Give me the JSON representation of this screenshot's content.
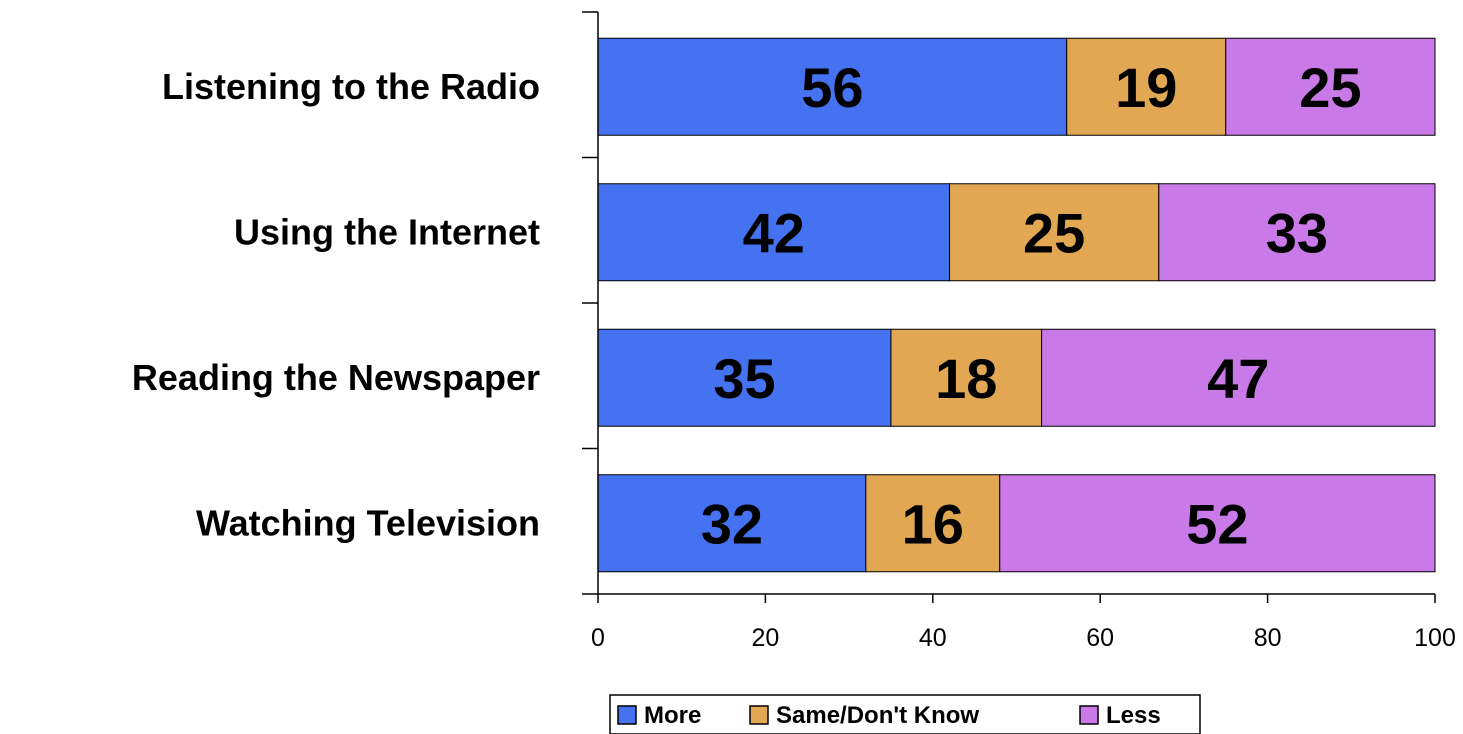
{
  "chart_data": {
    "type": "bar",
    "orientation": "horizontal",
    "stacked": true,
    "categories": [
      "Listening to the Radio",
      "Using the Internet",
      "Reading the Newspaper",
      "Watching Television"
    ],
    "series": [
      {
        "name": "More",
        "color": "#4472f0",
        "values": [
          56,
          42,
          35,
          32
        ]
      },
      {
        "name": "Same/Don't Know",
        "color": "#e2a752",
        "values": [
          19,
          25,
          18,
          16
        ]
      },
      {
        "name": "Less",
        "color": "#c97ae8",
        "values": [
          25,
          33,
          47,
          52
        ]
      }
    ],
    "xlim": [
      0,
      100
    ],
    "xticks": [
      "0",
      "20",
      "40",
      "60",
      "80",
      "100"
    ],
    "title": "",
    "xlabel": "",
    "ylabel": "",
    "grid": false,
    "legend": "bottom"
  }
}
